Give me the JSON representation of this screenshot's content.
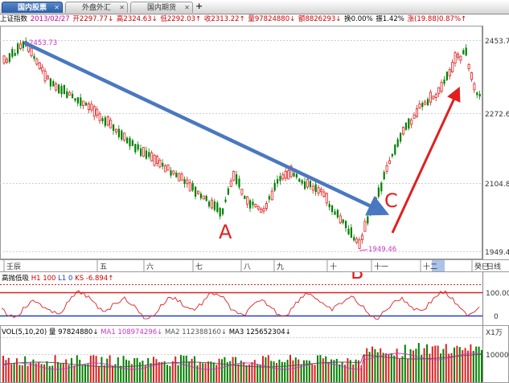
{
  "tabs": [
    {
      "label": "国内股票",
      "active": true
    },
    {
      "label": "外盘外汇",
      "active": false
    },
    {
      "label": "国内期货",
      "active": false
    }
  ],
  "new_tab_label": "+",
  "info": {
    "index_name": "上证指数",
    "date": "2013/02/27",
    "open": "开2297.77↓",
    "high": "高2324.63↓",
    "low": "低2292.03↑",
    "close": "收2313.22↑",
    "volume": "量97824880↓",
    "amount": "额8826293↓",
    "turnover": "换0.00%",
    "amplitude": "振1.42%",
    "change": "涨(19.88)0.87%↑"
  },
  "price_axis": {
    "labels": [
      "2453.73",
      "2272.60",
      "2104.84",
      "1949.46"
    ]
  },
  "markers": {
    "high": "2453.73",
    "low": "1949.46"
  },
  "time_axis": {
    "labels": [
      "壬辰",
      "五",
      "六",
      "七",
      "八",
      "九",
      "十",
      "十一",
      "十二",
      "癸巳"
    ],
    "unit": "日线"
  },
  "kd_indicator": {
    "name": "高抛低吸",
    "h1": "H1 100",
    "l1": "L1 0",
    "ks": "KS -6.894↑",
    "axis": [
      "100.00",
      "0"
    ]
  },
  "volume_indicator": {
    "name": "VOL(5,10,20)",
    "vol": "量 97824880↓",
    "ma1": "MA1 108974296↓",
    "ma2": "MA2 112388160↓",
    "ma3": "MA3 125652304↓",
    "unit": "X1万",
    "axis": "10000"
  },
  "annotations": {
    "a": "A",
    "b": "B",
    "c": "C"
  },
  "colors": {
    "up": "#e02020",
    "down": "#008000",
    "ma_magenta": "#cc33cc",
    "blue_line": "#4a78c0",
    "axis_label": "#333333",
    "info_magenta": "#cc0099"
  }
}
